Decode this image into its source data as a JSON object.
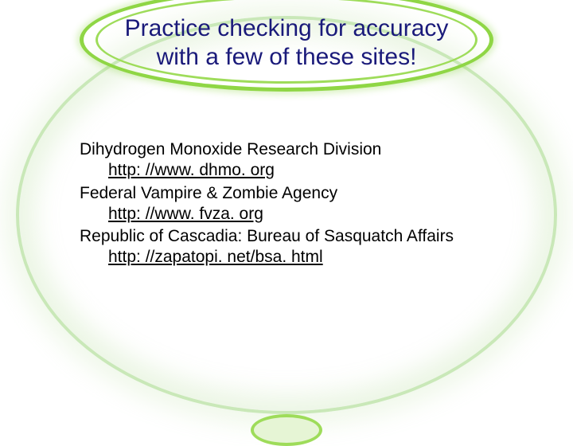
{
  "title": {
    "line1": "Practice checking for accuracy",
    "line2": "with a few of these sites!",
    "color": "#1a1a7a",
    "fontsize": 30
  },
  "body": {
    "fontsize": 21,
    "color": "#000000",
    "entries": [
      {
        "label": "Dihydrogen Monoxide Research Division",
        "link": "http: //www. dhmo. org"
      },
      {
        "label": "Federal Vampire & Zombie Agency",
        "link": "http: //www. fvza. org"
      },
      {
        "label": "Republic of Cascadia: Bureau of Sasquatch Affairs",
        "link": "http: //zapatopi. net/bsa. html"
      }
    ]
  },
  "theme": {
    "background": "#ffffff",
    "accent_green": "#8fd645",
    "accent_green_light": "#c9e8b8",
    "oval_border_width": 4
  }
}
